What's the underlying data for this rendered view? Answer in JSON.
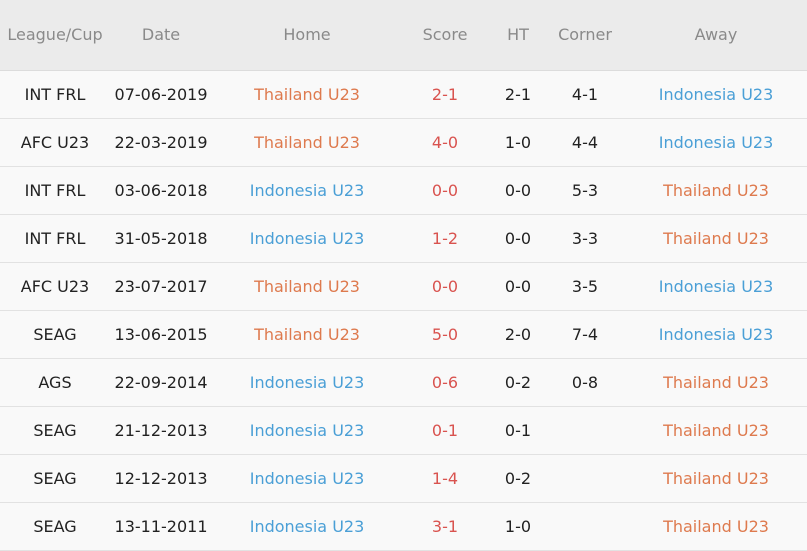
{
  "colors": {
    "thailand": "#de7a4e",
    "indonesia": "#4a9fd6",
    "score": "#d9534f",
    "header_bg": "#ebebeb"
  },
  "headers": [
    "League/Cup",
    "Date",
    "Home",
    "Score",
    "HT",
    "Corner",
    "Away"
  ],
  "rows": [
    {
      "league": "INT FRL",
      "date": "07-06-2019",
      "home": "Thailand U23",
      "score": "2-1",
      "ht": "2-1",
      "corner": "4-1",
      "away": "Indonesia U23"
    },
    {
      "league": "AFC U23",
      "date": "22-03-2019",
      "home": "Thailand U23",
      "score": "4-0",
      "ht": "1-0",
      "corner": "4-4",
      "away": "Indonesia U23"
    },
    {
      "league": "INT FRL",
      "date": "03-06-2018",
      "home": "Indonesia U23",
      "score": "0-0",
      "ht": "0-0",
      "corner": "5-3",
      "away": "Thailand U23"
    },
    {
      "league": "INT FRL",
      "date": "31-05-2018",
      "home": "Indonesia U23",
      "score": "1-2",
      "ht": "0-0",
      "corner": "3-3",
      "away": "Thailand U23"
    },
    {
      "league": "AFC U23",
      "date": "23-07-2017",
      "home": "Thailand U23",
      "score": "0-0",
      "ht": "0-0",
      "corner": "3-5",
      "away": "Indonesia U23"
    },
    {
      "league": "SEAG",
      "date": "13-06-2015",
      "home": "Thailand U23",
      "score": "5-0",
      "ht": "2-0",
      "corner": "7-4",
      "away": "Indonesia U23"
    },
    {
      "league": "AGS",
      "date": "22-09-2014",
      "home": "Indonesia U23",
      "score": "0-6",
      "ht": "0-2",
      "corner": "0-8",
      "away": "Thailand U23"
    },
    {
      "league": "SEAG",
      "date": "21-12-2013",
      "home": "Indonesia U23",
      "score": "0-1",
      "ht": "0-1",
      "corner": "",
      "away": "Thailand U23"
    },
    {
      "league": "SEAG",
      "date": "12-12-2013",
      "home": "Indonesia U23",
      "score": "1-4",
      "ht": "0-2",
      "corner": "",
      "away": "Thailand U23"
    },
    {
      "league": "SEAG",
      "date": "13-11-2011",
      "home": "Indonesia U23",
      "score": "3-1",
      "ht": "1-0",
      "corner": "",
      "away": "Thailand U23"
    }
  ]
}
